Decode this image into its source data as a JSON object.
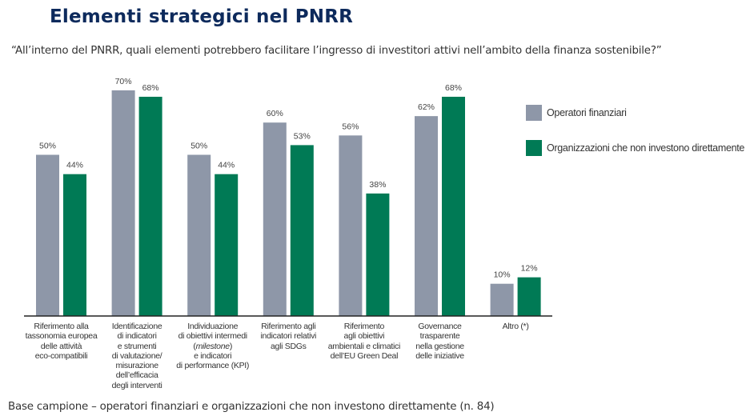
{
  "header": {
    "title": "Elementi strategici nel PNRR",
    "question": "“All’interno del PNRR, quali elementi potrebbero facilitare l’ingresso di investitori attivi nell’ambito della finanza sostenibile?”"
  },
  "footer": {
    "note": "Base campione – operatori finanziari e organizzazioni che non investono direttamente (n. 84)"
  },
  "colors": {
    "operatori": "#8e97a8",
    "organizzazioni": "#007a55",
    "title": "#0d2a5c"
  },
  "chart_data": {
    "type": "bar",
    "title": "",
    "xlabel": "",
    "ylabel": "",
    "ylim": [
      0,
      70
    ],
    "grid": false,
    "legend_position": "right",
    "value_format": "percent",
    "categories": [
      "Riferimento alla tassonomia europea delle attività eco-compatibili",
      "Identificazione di indicatori e strumenti di valutazione/ misurazione dell’efficacia degli interventi",
      "Individuazione di obiettivi intermedi (milestone) e indicatori di performance (KPI)",
      "Riferimento agli indicatori relativi agli SDGs",
      "Riferimento agli obiettivi ambientali e climatici dell’EU Green Deal",
      "Governance trasparente nella gestione delle iniziative",
      "Altro (*)"
    ],
    "category_lines": [
      [
        "Riferimento alla",
        "tassonomia europea",
        "delle attività",
        "eco-compatibili"
      ],
      [
        "Identificazione",
        "di indicatori",
        "e strumenti",
        "di valutazione/",
        "misurazione",
        "dell’efficacia",
        "degli interventi"
      ],
      [
        "Individuazione",
        "di obiettivi intermedi",
        "(milestone)",
        "e indicatori",
        "di performance (KPI)"
      ],
      [
        "Riferimento agli",
        "indicatori relativi",
        "agli SDGs"
      ],
      [
        "Riferimento",
        "agli obiettivi",
        "ambientali e climatici",
        "dell’EU Green Deal"
      ],
      [
        "Governance",
        "trasparente",
        "nella gestione",
        "delle iniziative"
      ],
      [
        "Altro (*)"
      ]
    ],
    "series": [
      {
        "name": "Operatori finanziari",
        "values": [
          50,
          70,
          50,
          60,
          56,
          62,
          10
        ],
        "labels": [
          "50%",
          "70%",
          "50%",
          "60%",
          "56%",
          "62%",
          "10%"
        ]
      },
      {
        "name": "Organizzazioni che non investono direttamente",
        "values": [
          44,
          68,
          44,
          53,
          38,
          68,
          12
        ],
        "labels": [
          "44%",
          "68%",
          "44%",
          "53%",
          "38%",
          "68%",
          "12%"
        ]
      }
    ]
  }
}
